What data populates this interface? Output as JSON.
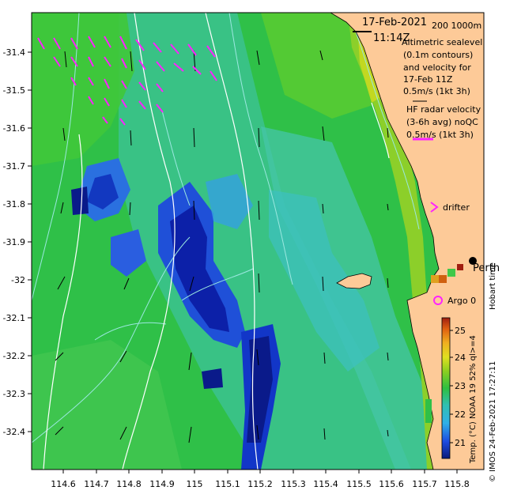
{
  "map": {
    "title_date": "17-Feb-2021",
    "title_time": "11:14Z",
    "lon_ticks": [
      "114.6",
      "114.7",
      "114.8",
      "114.9",
      "115",
      "115.1",
      "115.2",
      "115.3",
      "115.4",
      "115.5",
      "115.6",
      "115.7",
      "115.8"
    ],
    "lat_ticks": [
      "-31.4",
      "-31.5",
      "-31.6",
      "-31.7",
      "-31.8",
      "-31.9",
      "-32",
      "-32.1",
      "-32.2",
      "-32.3",
      "-32.4"
    ],
    "lon_range": [
      114.53,
      115.88
    ],
    "lat_range": [
      -32.49,
      -31.33
    ],
    "depth_contours_label": "200  1000m",
    "altimetry_text": [
      "Altimetric sealevel",
      "(0.1m contours)",
      "and velocity for",
      "17-Feb 11Z",
      "0.5m/s (1kt 3h)"
    ],
    "radar_text": [
      "HF radar velocity",
      "(3-6h avg) noQC",
      "0.5m/s (1kt 3h)"
    ],
    "drifter_label": "drifter",
    "argo_label": "Argo 0",
    "city_label": "Perth",
    "hobart_label": "Hobart time",
    "credit": "© IMOS 24-Feb-2021 17:27:11",
    "colorbar_title": "Temp. (°C) NOAA 19 52% ql>=4",
    "colorbar_ticks": [
      "25",
      "24",
      "23",
      "22",
      "21"
    ],
    "colorbar_range": [
      20.4,
      25.4
    ],
    "colors": {
      "land": "#fdca98",
      "ocean_mid": "#2ec046",
      "cold": "#0a1e9a",
      "radar_arrow": "#ff22ff",
      "argo": "#ff22ff",
      "contour": "#ffffff",
      "isobath": "#9be8e0"
    }
  }
}
